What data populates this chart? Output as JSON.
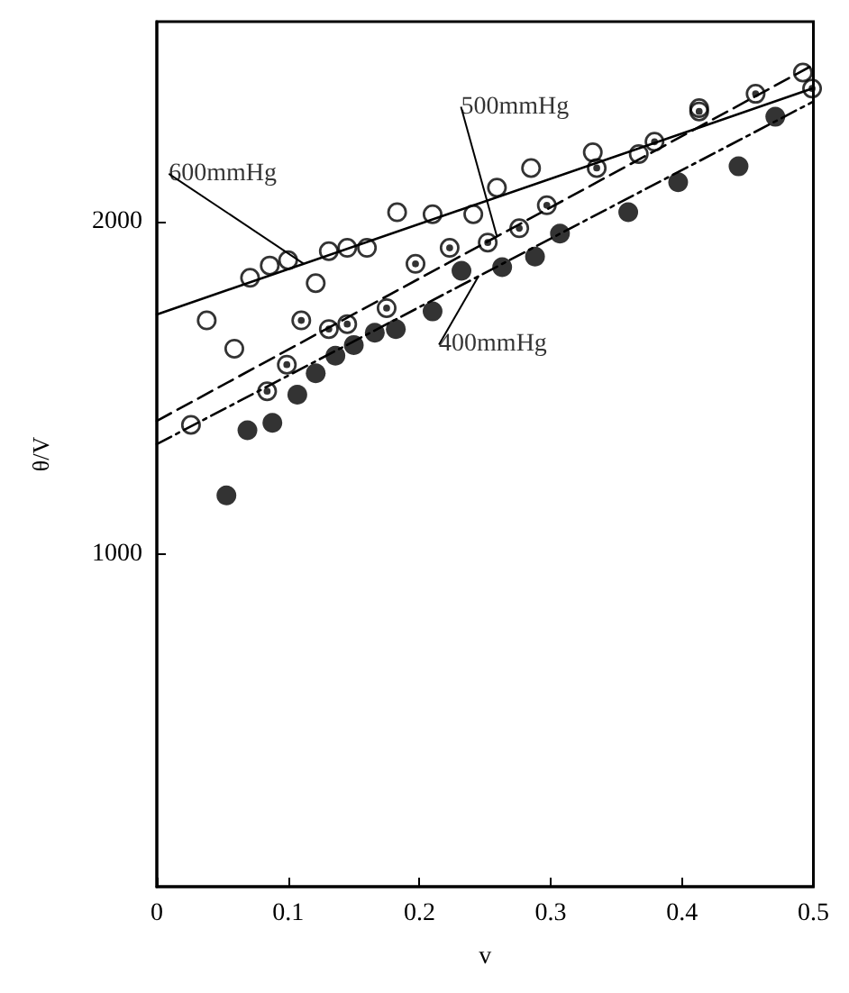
{
  "chart_data": {
    "type": "scatter",
    "xlabel": "v",
    "ylabel": "θ/V",
    "xlim": [
      0,
      0.5
    ],
    "ylim": [
      0,
      2600
    ],
    "xticks": [
      0,
      0.1,
      0.2,
      0.3,
      0.4,
      0.5
    ],
    "yticks": [
      1000,
      2000
    ],
    "grid": false,
    "marker": "circle",
    "series": [
      {
        "color": "#000000",
        "x": [
          0.026,
          0.038,
          0.059,
          0.071,
          0.086,
          0.1,
          0.121,
          0.131,
          0.145,
          0.16,
          0.183,
          0.21,
          0.241,
          0.259,
          0.285,
          0.332,
          0.367,
          0.413,
          0.492
        ],
        "values": [
          1388,
          1702,
          1617,
          1830,
          1867,
          1883,
          1814,
          1910,
          1920,
          1920,
          2027,
          2021,
          2021,
          2101,
          2160,
          2207,
          2202,
          2340,
          2447
        ]
      },
      {
        "color": "#000000",
        "x": [
          0.084,
          0.099,
          0.11,
          0.131,
          0.145,
          0.175,
          0.197,
          0.223,
          0.252,
          0.276,
          0.297,
          0.335,
          0.379,
          0.413,
          0.456,
          0.499
        ],
        "values": [
          1489,
          1569,
          1702,
          1676,
          1691,
          1739,
          1872,
          1920,
          1936,
          1979,
          2048,
          2160,
          2239,
          2330,
          2383,
          2399
        ]
      },
      {
        "color": "#000000",
        "x": [
          0.053,
          0.069,
          0.088,
          0.107,
          0.121,
          0.136,
          0.15,
          0.166,
          0.182,
          0.21,
          0.232,
          0.263,
          0.288,
          0.307,
          0.359,
          0.397,
          0.443,
          0.471
        ],
        "values": [
          1176,
          1372,
          1394,
          1479,
          1543,
          1596,
          1628,
          1665,
          1676,
          1729,
          1851,
          1862,
          1894,
          1963,
          2027,
          2117,
          2165,
          2314
        ]
      },
      {
        "type": "line",
        "color": "#000000",
        "line_style": "solid",
        "marker": "none",
        "x": [
          0,
          0.5
        ],
        "values": [
          1720,
          2400
        ]
      },
      {
        "type": "line",
        "color": "#000000",
        "line_style": "dashed",
        "marker": "none",
        "x": [
          0,
          0.5
        ],
        "values": [
          1400,
          2470
        ]
      },
      {
        "type": "line",
        "color": "#000000",
        "line_style": "dotted",
        "marker": "none",
        "x": [
          0,
          0.5
        ],
        "values": [
          1330,
          2360
        ]
      }
    ],
    "annotations": [
      {
        "text": "600mmHg",
        "x": 0.112,
        "y": 1872
      },
      {
        "text": "500mmHg",
        "x": 0.259,
        "y": 1954
      },
      {
        "text": "400mmHg",
        "x": 0.245,
        "y": 1835
      }
    ]
  }
}
